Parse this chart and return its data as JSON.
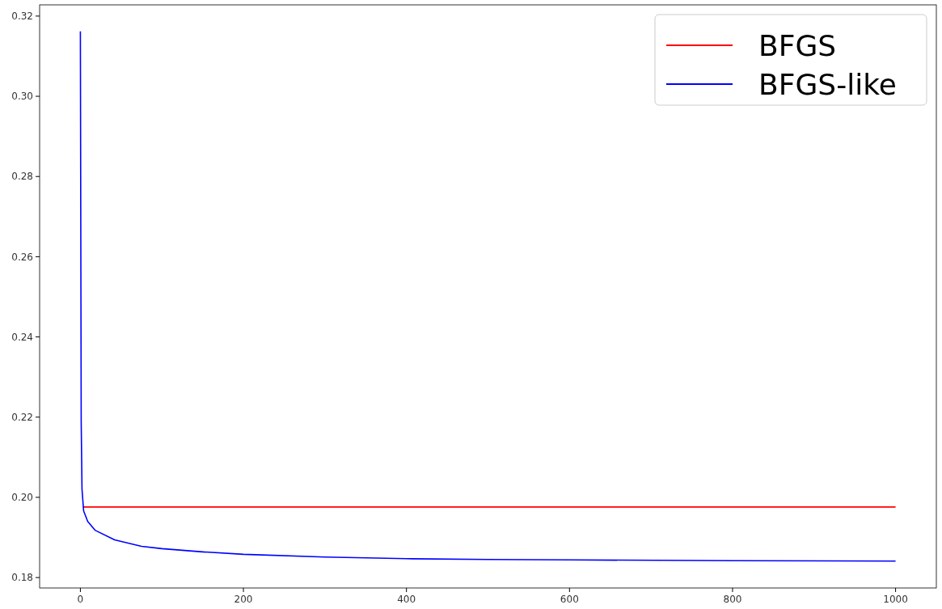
{
  "chart_data": {
    "type": "line",
    "xlim": [
      -50,
      1050
    ],
    "ylim": [
      0.1774,
      0.3228
    ],
    "xticks": [
      0,
      200,
      400,
      600,
      800,
      1000
    ],
    "yticks": [
      {
        "value": 0.18,
        "label": "0.18"
      },
      {
        "value": 0.2,
        "label": "0.20"
      },
      {
        "value": 0.22,
        "label": "0.22"
      },
      {
        "value": 0.24,
        "label": "0.24"
      },
      {
        "value": 0.26,
        "label": "0.26"
      },
      {
        "value": 0.28,
        "label": "0.28"
      },
      {
        "value": 0.3,
        "label": "0.30"
      },
      {
        "value": 0.32,
        "label": "0.32"
      }
    ],
    "legend": "top right",
    "grid": false,
    "series": [
      {
        "name": "BFGS",
        "color": "#ff0000",
        "x": [
          3,
          1000
        ],
        "values": [
          0.1976,
          0.1976
        ]
      },
      {
        "name": "BFGS-like",
        "color": "#0000ff",
        "x": [
          0,
          1,
          2,
          4,
          9,
          18,
          42,
          75,
          100,
          150,
          200,
          300,
          400,
          500,
          600,
          800,
          1000
        ],
        "values": [
          0.3162,
          0.219,
          0.202,
          0.1966,
          0.194,
          0.1918,
          0.1894,
          0.1878,
          0.1872,
          0.1864,
          0.1858,
          0.1851,
          0.1847,
          0.1845,
          0.1844,
          0.1842,
          0.1841
        ]
      }
    ]
  }
}
